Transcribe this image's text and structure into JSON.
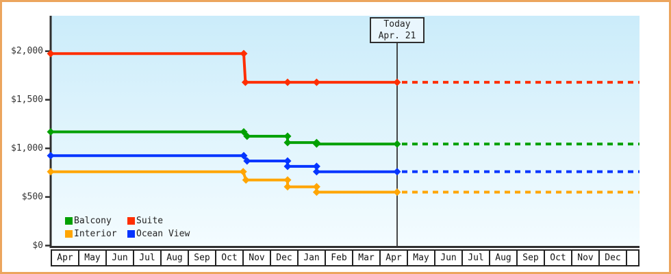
{
  "chart_data": {
    "type": "line",
    "description": "Cabin price history by category with stepped price drops, a today marker, and dashed projected future prices",
    "currency": "$",
    "x_axis": {
      "unit": "months (0 = first April cell left edge)",
      "months": [
        "Apr",
        "May",
        "Jun",
        "Jul",
        "Aug",
        "Sep",
        "Oct",
        "Nov",
        "Dec",
        "Jan",
        "Feb",
        "Mar",
        "Apr",
        "May",
        "Jun",
        "Jul",
        "Aug",
        "Sep",
        "Oct",
        "Nov",
        "Dec"
      ],
      "today_x": 12.6,
      "x_end": 21.45
    },
    "y_axis": {
      "ticks": [
        {
          "value": 0,
          "label": "$0"
        },
        {
          "value": 500,
          "label": "$500"
        },
        {
          "value": 1000,
          "label": "$1,000"
        },
        {
          "value": 1500,
          "label": "$1,500"
        },
        {
          "value": 2000,
          "label": "$2,000"
        }
      ],
      "ylim": [
        0,
        2365
      ],
      "grid": false
    },
    "today_box": {
      "line1": "Today",
      "line2": "Apr. 21"
    },
    "legend_position": "bottom-left inside plot",
    "legend": [
      {
        "label": "Balcony",
        "color": "#02a002"
      },
      {
        "label": "Suite",
        "color": "#ff2e00"
      },
      {
        "label": "Interior",
        "color": "#ffa502"
      },
      {
        "label": "Ocean View",
        "color": "#0535ff"
      }
    ],
    "series": [
      {
        "name": "Suite",
        "color": "#ff2e00",
        "points": [
          [
            -0.05,
            1975
          ],
          [
            7.0,
            1975
          ],
          [
            7.06,
            1680
          ],
          [
            8.6,
            1680
          ],
          [
            9.66,
            1680
          ],
          [
            12.6,
            1680
          ]
        ],
        "future_value": 1680
      },
      {
        "name": "Balcony",
        "color": "#02a002",
        "points": [
          [
            -0.05,
            1170
          ],
          [
            7.0,
            1170
          ],
          [
            7.12,
            1125
          ],
          [
            8.6,
            1125
          ],
          [
            8.6,
            1060
          ],
          [
            9.66,
            1060
          ],
          [
            9.66,
            1045
          ],
          [
            12.6,
            1045
          ]
        ],
        "future_value": 1045
      },
      {
        "name": "Ocean View",
        "color": "#0535ff",
        "points": [
          [
            -0.05,
            925
          ],
          [
            7.0,
            925
          ],
          [
            7.12,
            870
          ],
          [
            8.6,
            870
          ],
          [
            8.6,
            815
          ],
          [
            9.66,
            815
          ],
          [
            9.66,
            760
          ],
          [
            12.6,
            760
          ]
        ],
        "future_value": 760
      },
      {
        "name": "Interior",
        "color": "#ffa502",
        "points": [
          [
            -0.05,
            760
          ],
          [
            6.98,
            760
          ],
          [
            7.08,
            675
          ],
          [
            8.6,
            675
          ],
          [
            8.6,
            605
          ],
          [
            9.66,
            605
          ],
          [
            9.66,
            550
          ],
          [
            12.6,
            550
          ]
        ],
        "future_value": 550
      }
    ],
    "colors": {
      "frame_border": "#eca55e",
      "plot_bg_top": "#cbecfa",
      "plot_bg_bottom": "#f4fcff",
      "axis": "#2e2e2e",
      "today_line": "#333333",
      "text": "#333333"
    }
  }
}
